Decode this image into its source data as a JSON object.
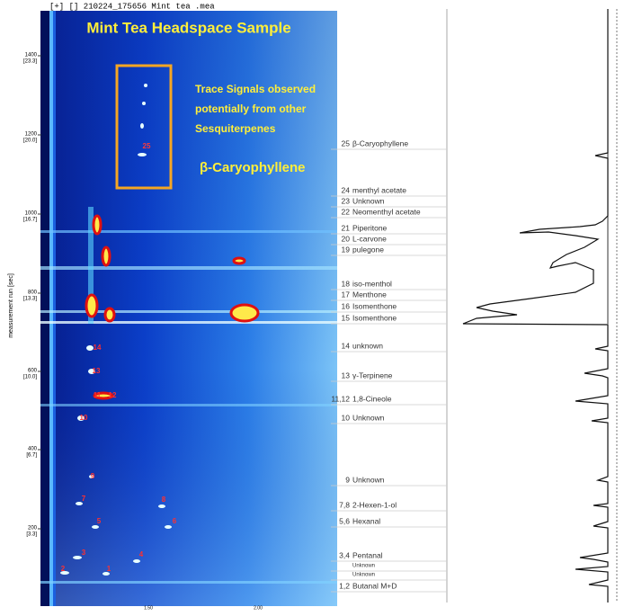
{
  "header": {
    "file": "[+] [] 210224_175656 Mint tea .mea",
    "title": "Mint Tea Headspace Sample"
  },
  "annotation": {
    "lines": [
      "Trace Signals observed",
      "potentially from other",
      "Sesquiterpenes"
    ],
    "compound": "β-Caryophyllene"
  },
  "heatmap": {
    "y_axis_label": "measurement run [sec]",
    "y_ticks": [
      {
        "label": "1400",
        "sub": "[23.3]"
      },
      {
        "label": "1200",
        "sub": "[20.0]"
      },
      {
        "label": "1000",
        "sub": "[16.7]"
      },
      {
        "label": "800",
        "sub": "[13.3]"
      },
      {
        "label": "600",
        "sub": "[10.0]"
      },
      {
        "label": "400",
        "sub": "[6.7]"
      },
      {
        "label": "200",
        "sub": "[3.3]"
      }
    ],
    "x_ticks": [
      "1.50",
      "2.00"
    ],
    "spot_labels": [
      "25",
      "14",
      "13",
      "11",
      "12",
      "10",
      "9",
      "7",
      "8",
      "5",
      "6",
      "3",
      "4",
      "2",
      "1"
    ]
  },
  "peaks": [
    {
      "number": "25",
      "name": "β-Caryophyllene"
    },
    {
      "number": "24",
      "name": "menthyl acetate"
    },
    {
      "number": "23",
      "name": "Unknown"
    },
    {
      "number": "22",
      "name": "Neomenthyl acetate"
    },
    {
      "number": "21",
      "name": "Piperitone"
    },
    {
      "number": "20",
      "name": "L-carvone"
    },
    {
      "number": "19",
      "name": "pulegone"
    },
    {
      "number": "18",
      "name": "iso-menthol"
    },
    {
      "number": "17",
      "name": "Menthone"
    },
    {
      "number": "16",
      "name": "Isomenthone"
    },
    {
      "number": "15",
      "name": "Isomenthone"
    },
    {
      "number": "14",
      "name": "unknown"
    },
    {
      "number": "13",
      "name": "γ-Terpinene"
    },
    {
      "number": "11,12",
      "name": "1,8-Cineole"
    },
    {
      "number": "10",
      "name": "Unknown"
    },
    {
      "number": "9",
      "name": "Unknown"
    },
    {
      "number": "7,8",
      "name": "2-Hexen-1-ol"
    },
    {
      "number": "5,6",
      "name": "Hexanal"
    },
    {
      "number": "3,4",
      "name": "Pentanal"
    },
    {
      "name": "Unknown"
    },
    {
      "name": "Unknown"
    },
    {
      "number": "1,2",
      "name": "Butanal M+D"
    }
  ]
}
